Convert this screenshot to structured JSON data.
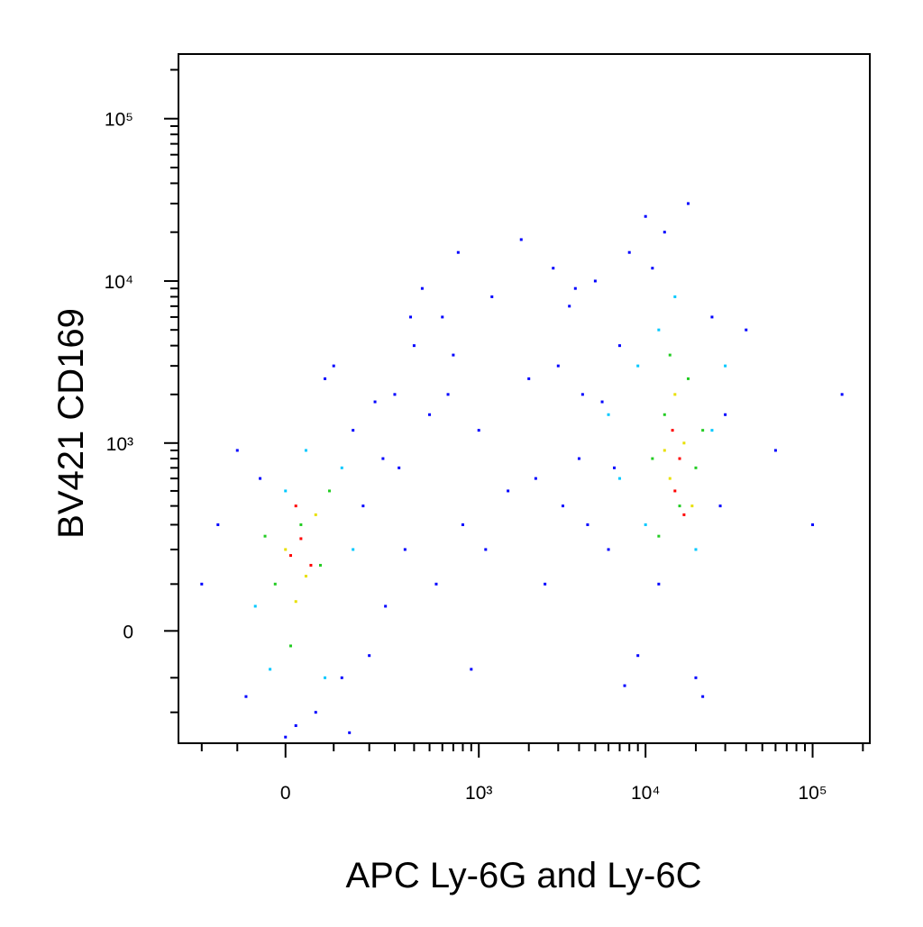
{
  "chart_data": {
    "type": "scatter",
    "xlabel": "APC Ly-6G and Ly-6C",
    "ylabel": "BV421 CD169",
    "xscale": "arcsinh",
    "yscale": "arcsinh",
    "cofactor": 140,
    "xlim": [
      -290,
      220000
    ],
    "ylim": [
      -330,
      250000
    ],
    "xticks": [
      0,
      {
        "value": 1000,
        "label": "10³"
      },
      {
        "value": 10000,
        "label": "10⁴"
      },
      {
        "value": 100000,
        "label": "10⁵"
      }
    ],
    "yticks": [
      0,
      {
        "value": 1000,
        "label": "10³"
      },
      {
        "value": 10000,
        "label": "10⁴"
      },
      {
        "value": 100000,
        "label": "10⁵"
      }
    ],
    "xminorticks": [
      -200,
      -100,
      100,
      200,
      300,
      400,
      500,
      600,
      700,
      800,
      900,
      2000,
      3000,
      4000,
      5000,
      6000,
      7000,
      8000,
      9000,
      20000,
      30000,
      40000,
      50000,
      60000,
      70000,
      80000,
      90000,
      200000
    ],
    "yminorticks": [
      -200,
      -100,
      100,
      200,
      300,
      400,
      500,
      600,
      700,
      800,
      900,
      2000,
      3000,
      4000,
      5000,
      6000,
      7000,
      8000,
      9000,
      20000,
      30000,
      40000,
      50000,
      60000,
      70000,
      80000,
      90000,
      200000
    ],
    "series": [
      {
        "color": "#0000ff",
        "x": [
          -150,
          -80,
          20,
          60,
          120,
          180,
          250,
          300,
          400,
          500,
          600,
          800,
          1000,
          1200,
          1500,
          2000,
          2500,
          3000,
          3500,
          4000,
          5000,
          6000,
          7000,
          8000,
          9000,
          11000,
          13000,
          20000,
          25000,
          30000,
          150,
          350,
          450,
          700,
          900,
          1800,
          2200,
          2800,
          4500,
          5500,
          -200,
          -50,
          80,
          200,
          260,
          320,
          380,
          550,
          650,
          750,
          3200,
          3800,
          4200,
          6500,
          7500,
          10000,
          12000,
          18000,
          22000,
          28000,
          40000,
          60000,
          100000,
          150000,
          -100,
          0,
          100,
          140,
          220,
          1100
        ],
        "values": [
          300,
          -150,
          -250,
          -200,
          -100,
          400,
          800,
          2000,
          4000,
          1500,
          6000,
          300,
          1200,
          8000,
          500,
          2500,
          100,
          3000,
          7000,
          800,
          10000,
          200,
          4000,
          15000,
          -50,
          12000,
          20000,
          -100,
          6000,
          1500,
          1200,
          200,
          9000,
          3500,
          -80,
          18000,
          600,
          12000,
          300,
          1800,
          100,
          600,
          2500,
          -50,
          50,
          700,
          6000,
          100,
          2000,
          15000,
          400,
          9000,
          2000,
          700,
          -120,
          25000,
          100,
          30000,
          -150,
          400,
          5000,
          900,
          300,
          2000,
          900,
          -300,
          3000,
          -280,
          1800,
          200
        ]
      },
      {
        "color": "#00c8ff",
        "x": [
          -60,
          0,
          80,
          120,
          40,
          -30,
          150,
          6000,
          9000,
          10000,
          12000,
          20000,
          25000,
          7000,
          15000,
          30000
        ],
        "values": [
          50,
          500,
          -100,
          700,
          900,
          -80,
          200,
          1500,
          3000,
          300,
          5000,
          200,
          1200,
          600,
          8000,
          3000
        ]
      },
      {
        "color": "#22cc22",
        "x": [
          -20,
          30,
          70,
          90,
          10,
          -40,
          11000,
          13000,
          16000,
          18000,
          20000,
          14000,
          22000,
          12000
        ],
        "values": [
          100,
          300,
          150,
          500,
          -30,
          250,
          800,
          1500,
          400,
          2500,
          700,
          3500,
          1200,
          250
        ]
      },
      {
        "color": "#e8e000",
        "x": [
          0,
          40,
          60,
          20,
          14000,
          17000,
          15000,
          19000,
          13000
        ],
        "values": [
          200,
          120,
          350,
          60,
          600,
          1000,
          2000,
          400,
          900
        ]
      },
      {
        "color": "#ff0000",
        "x": [
          10,
          30,
          50,
          20,
          15000,
          16000,
          17000,
          14500
        ],
        "values": [
          180,
          240,
          150,
          400,
          500,
          800,
          350,
          1200
        ]
      }
    ]
  }
}
